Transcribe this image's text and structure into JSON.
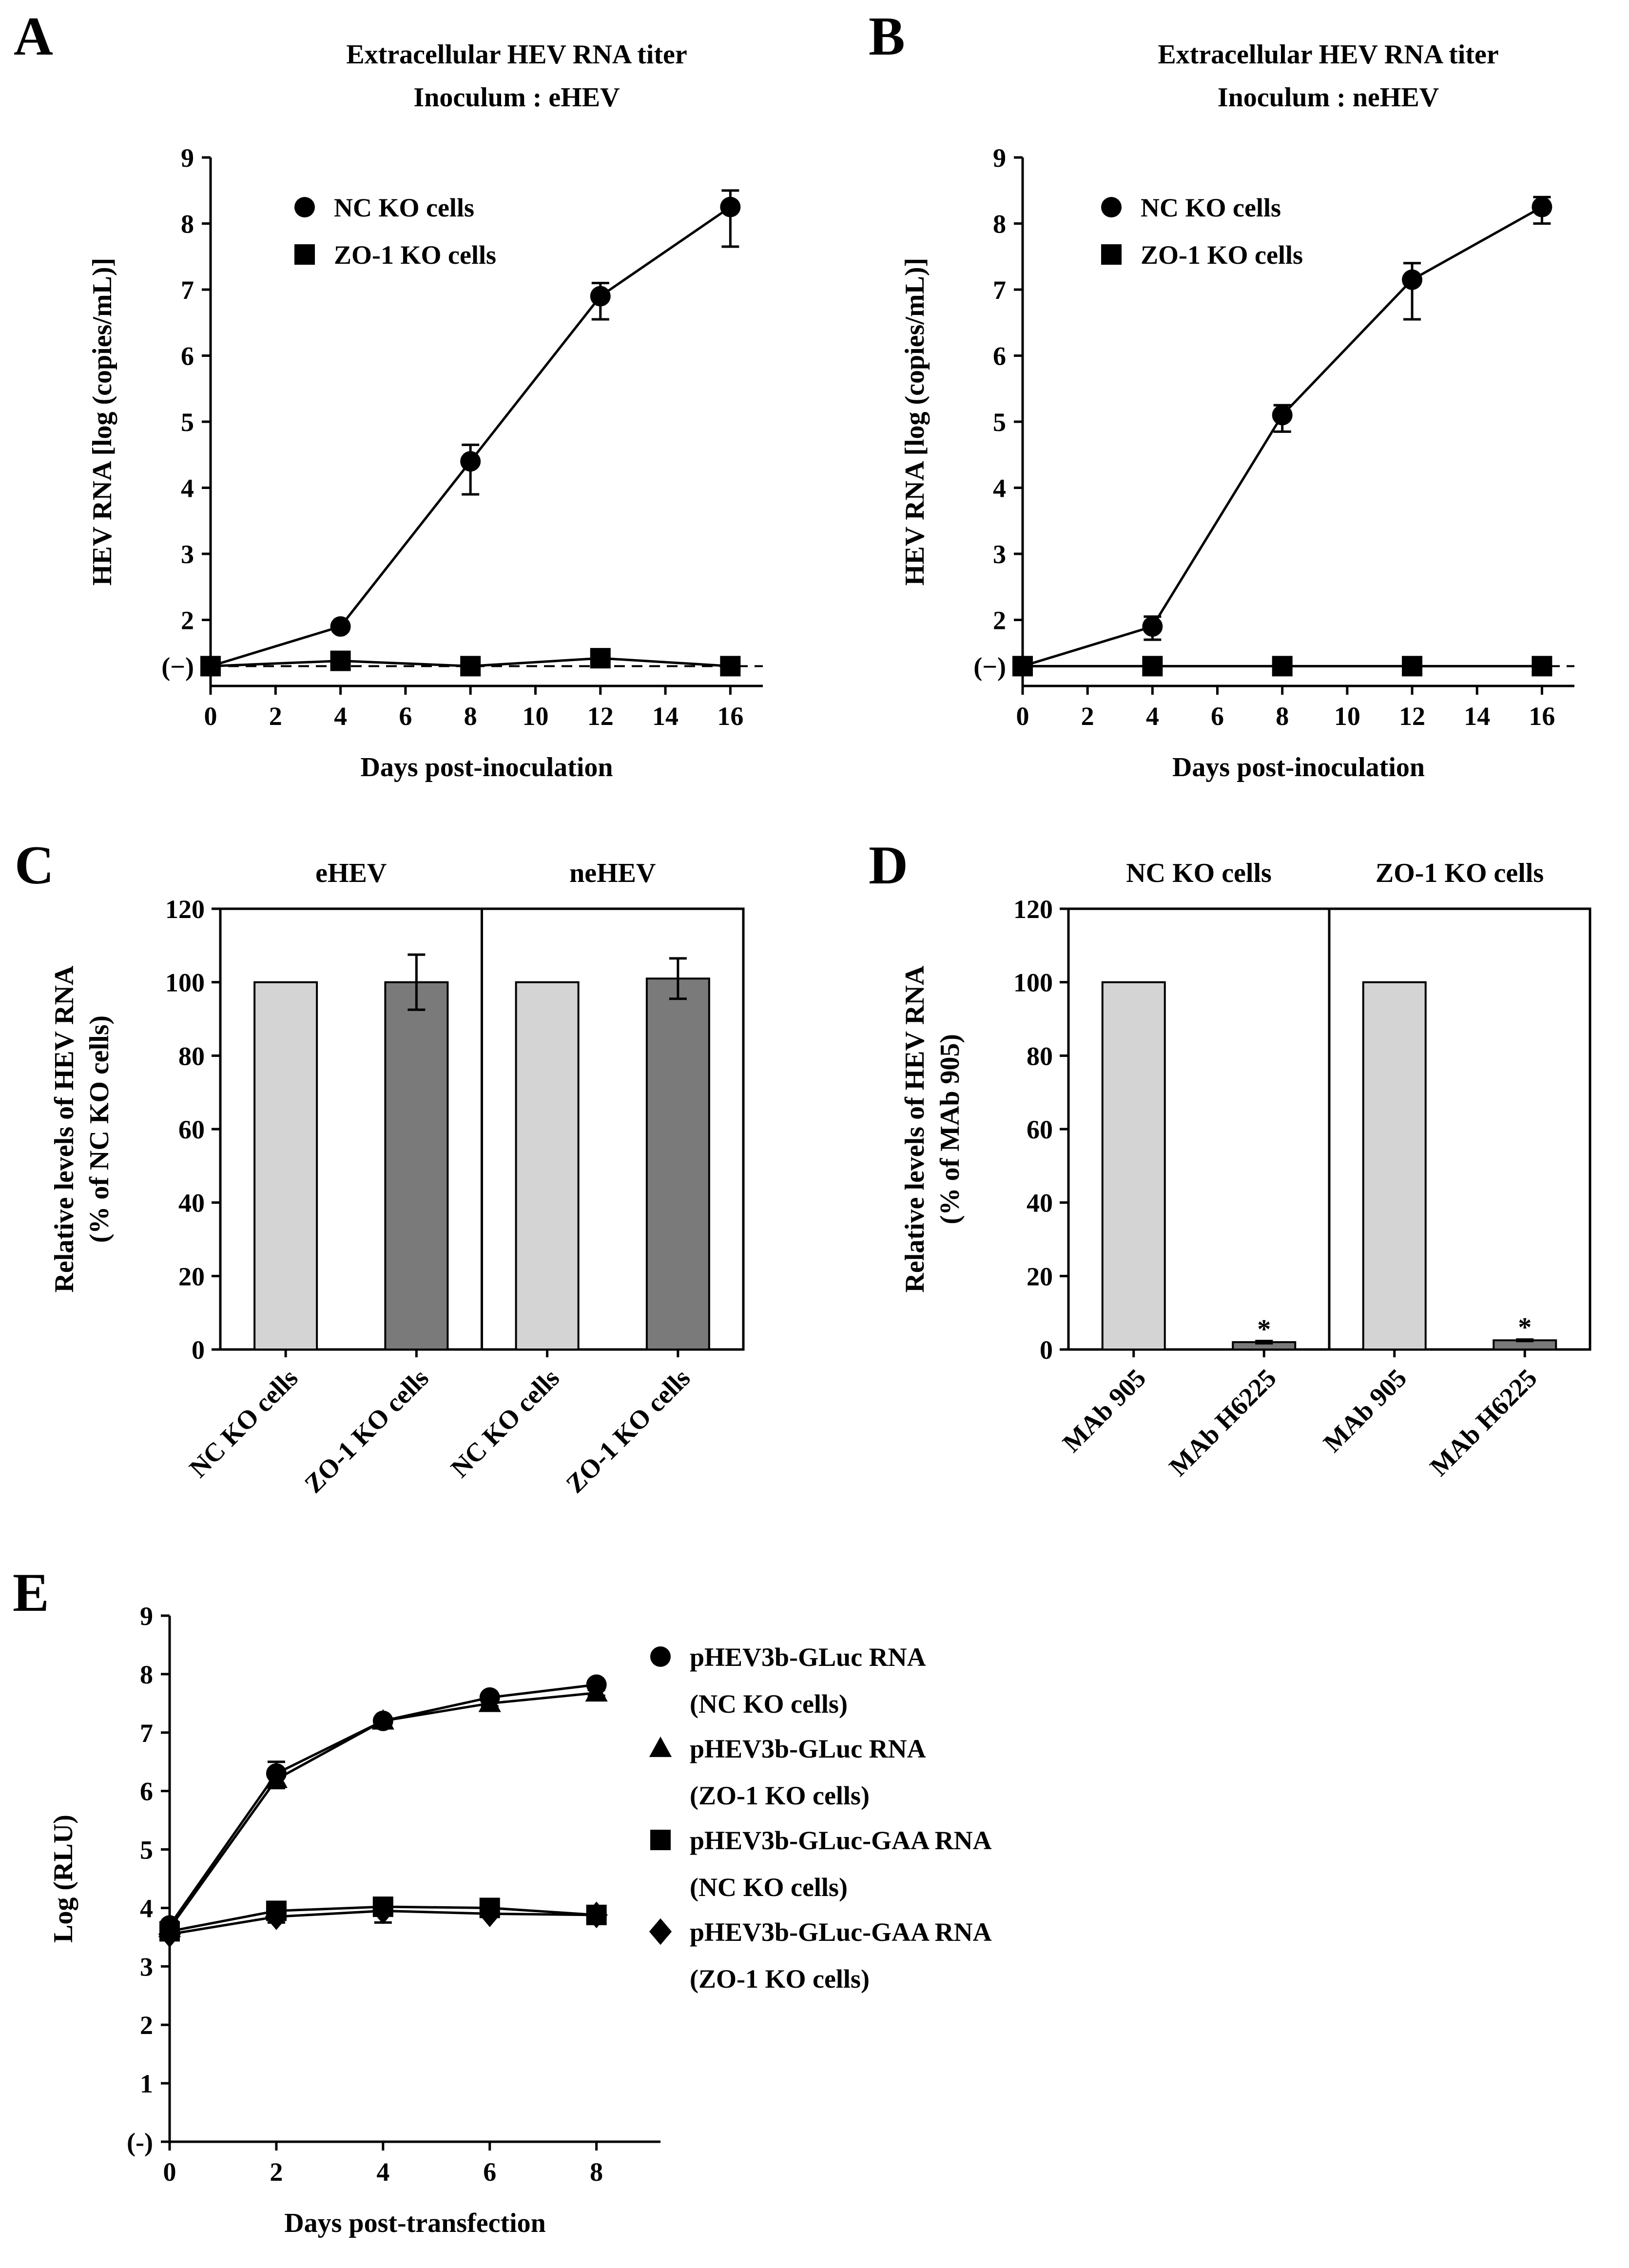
{
  "chart_data": [
    {
      "panel": "A",
      "type": "line",
      "title": [
        "Extracellular HEV RNA titer",
        "Inoculum : eHEV"
      ],
      "xlabel": "Days post-inoculation",
      "ylabel": "HEV RNA [log (copies/mL)]",
      "xlim": [
        0,
        17
      ],
      "ylim": [
        1,
        9
      ],
      "xticks": [
        0,
        2,
        4,
        6,
        8,
        10,
        12,
        14,
        16
      ],
      "yticks": [
        {
          "v": 1.3,
          "label": "(−)"
        },
        {
          "v": 2,
          "label": "2"
        },
        {
          "v": 3,
          "label": "3"
        },
        {
          "v": 4,
          "label": "4"
        },
        {
          "v": 5,
          "label": "5"
        },
        {
          "v": 6,
          "label": "6"
        },
        {
          "v": 7,
          "label": "7"
        },
        {
          "v": 8,
          "label": "8"
        },
        {
          "v": 9,
          "label": "9"
        }
      ],
      "detection_limit": 1.3,
      "legend": "top-left",
      "series": [
        {
          "name": "NC KO cells",
          "marker": "circle",
          "x": [
            0,
            4,
            8,
            12,
            16
          ],
          "y": [
            1.3,
            1.9,
            4.4,
            6.9,
            8.25
          ],
          "err_up": [
            0,
            0.05,
            0.25,
            0.2,
            0.25
          ],
          "err_down": [
            0,
            0.05,
            0.5,
            0.35,
            0.6
          ]
        },
        {
          "name": "ZO-1 KO cells",
          "marker": "square",
          "x": [
            0,
            4,
            8,
            12,
            16
          ],
          "y": [
            1.3,
            1.38,
            1.3,
            1.42,
            1.3
          ],
          "err_up": [
            0,
            0,
            0,
            0,
            0
          ],
          "err_down": [
            0,
            0,
            0,
            0,
            0
          ]
        }
      ]
    },
    {
      "panel": "B",
      "type": "line",
      "title": [
        "Extracellular HEV RNA titer",
        "Inoculum : neHEV"
      ],
      "xlabel": "Days post-inoculation",
      "ylabel": "HEV RNA [log (copies/mL)]",
      "xlim": [
        0,
        17
      ],
      "ylim": [
        1,
        9
      ],
      "xticks": [
        0,
        2,
        4,
        6,
        8,
        10,
        12,
        14,
        16
      ],
      "yticks": [
        {
          "v": 1.3,
          "label": "(−)"
        },
        {
          "v": 2,
          "label": "2"
        },
        {
          "v": 3,
          "label": "3"
        },
        {
          "v": 4,
          "label": "4"
        },
        {
          "v": 5,
          "label": "5"
        },
        {
          "v": 6,
          "label": "6"
        },
        {
          "v": 7,
          "label": "7"
        },
        {
          "v": 8,
          "label": "8"
        },
        {
          "v": 9,
          "label": "9"
        }
      ],
      "detection_limit": 1.3,
      "legend": "top-left",
      "series": [
        {
          "name": "NC KO cells",
          "marker": "circle",
          "x": [
            0,
            4,
            8,
            12,
            16
          ],
          "y": [
            1.3,
            1.9,
            5.1,
            7.15,
            8.25
          ],
          "err_up": [
            0,
            0.15,
            0.15,
            0.25,
            0.15
          ],
          "err_down": [
            0,
            0.2,
            0.25,
            0.6,
            0.25
          ]
        },
        {
          "name": "ZO-1 KO cells",
          "marker": "square",
          "x": [
            0,
            4,
            8,
            12,
            16
          ],
          "y": [
            1.3,
            1.3,
            1.3,
            1.3,
            1.3
          ],
          "err_up": [
            0,
            0,
            0,
            0,
            0
          ],
          "err_down": [
            0,
            0,
            0,
            0,
            0
          ]
        }
      ]
    },
    {
      "panel": "C",
      "type": "bar",
      "ylabel": [
        "Relative levels of HEV RNA",
        "(% of NC KO cells)"
      ],
      "ylim": [
        0,
        120
      ],
      "yticks": [
        0,
        20,
        40,
        60,
        80,
        100,
        120
      ],
      "groups": [
        "eHEV",
        "neHEV"
      ],
      "categories": [
        "NC KO cells",
        "ZO-1 KO cells",
        "NC KO cells",
        "ZO-1 KO cells"
      ],
      "values": [
        100,
        100,
        100,
        101
      ],
      "errors": [
        0,
        7.5,
        0,
        5.5
      ],
      "colors": [
        "#d4d4d4",
        "#7a7a7a",
        "#d4d4d4",
        "#7a7a7a"
      ],
      "annotations": [
        "",
        "",
        "",
        ""
      ]
    },
    {
      "panel": "D",
      "type": "bar",
      "ylabel": [
        "Relative levels of HEV RNA",
        "(% of MAb 905)"
      ],
      "ylim": [
        0,
        120
      ],
      "yticks": [
        0,
        20,
        40,
        60,
        80,
        100,
        120
      ],
      "groups": [
        "NC KO cells",
        "ZO-1 KO cells"
      ],
      "categories": [
        "MAb 905",
        "MAb H6225",
        "MAb 905",
        "MAb H6225"
      ],
      "values": [
        100,
        2,
        100,
        2.5
      ],
      "errors": [
        0,
        0.3,
        0,
        0.2
      ],
      "colors": [
        "#d4d4d4",
        "#7a7a7a",
        "#d4d4d4",
        "#7a7a7a"
      ],
      "annotations": [
        "",
        "*",
        "",
        "*"
      ]
    },
    {
      "panel": "E",
      "type": "line",
      "xlabel": "Days post-transfection",
      "ylabel": "Log (RLU)",
      "xlim": [
        0,
        9.2
      ],
      "ylim": [
        0,
        9
      ],
      "xticks": [
        0,
        2,
        4,
        6,
        8
      ],
      "yticks": [
        {
          "v": 0,
          "label": "(-)"
        },
        {
          "v": 1,
          "label": "1"
        },
        {
          "v": 2,
          "label": "2"
        },
        {
          "v": 3,
          "label": "3"
        },
        {
          "v": 4,
          "label": "4"
        },
        {
          "v": 5,
          "label": "5"
        },
        {
          "v": 6,
          "label": "6"
        },
        {
          "v": 7,
          "label": "7"
        },
        {
          "v": 8,
          "label": "8"
        },
        {
          "v": 9,
          "label": "9"
        }
      ],
      "legend": "right",
      "series": [
        {
          "name": "pHEV3b-GLuc RNA",
          "note": "(NC KO cells)",
          "marker": "circle",
          "x": [
            0,
            2,
            4,
            6,
            8
          ],
          "y": [
            3.7,
            6.3,
            7.2,
            7.6,
            7.82
          ],
          "err_up": [
            0.05,
            0.2,
            0.05,
            0.05,
            0.05
          ],
          "err_down": [
            0.05,
            0.2,
            0.05,
            0.05,
            0.05
          ]
        },
        {
          "name": "pHEV3b-GLuc RNA",
          "note": "(ZO-1 KO cells)",
          "marker": "triangle",
          "x": [
            0,
            2,
            4,
            6,
            8
          ],
          "y": [
            3.65,
            6.2,
            7.2,
            7.5,
            7.68
          ],
          "err_up": [
            0.05,
            0.15,
            0.05,
            0.05,
            0.05
          ],
          "err_down": [
            0.05,
            0.15,
            0.05,
            0.05,
            0.05
          ]
        },
        {
          "name": "pHEV3b-GLuc-GAA RNA",
          "note": "(NC KO cells)",
          "marker": "square",
          "x": [
            0,
            2,
            4,
            6,
            8
          ],
          "y": [
            3.6,
            3.95,
            4.02,
            4.0,
            3.88
          ],
          "err_up": [
            0.1,
            0.12,
            0.12,
            0.05,
            0.05
          ],
          "err_down": [
            0.1,
            0.12,
            0.12,
            0.05,
            0.05
          ]
        },
        {
          "name": "pHEV3b-GLuc-GAA RNA",
          "note": "(ZO-1 KO cells)",
          "marker": "diamond",
          "x": [
            0,
            2,
            4,
            6,
            8
          ],
          "y": [
            3.55,
            3.85,
            3.95,
            3.9,
            3.88
          ],
          "err_up": [
            0.1,
            0.1,
            0.2,
            0.05,
            0.05
          ],
          "err_down": [
            0.1,
            0.1,
            0.2,
            0.05,
            0.05
          ]
        }
      ]
    }
  ]
}
